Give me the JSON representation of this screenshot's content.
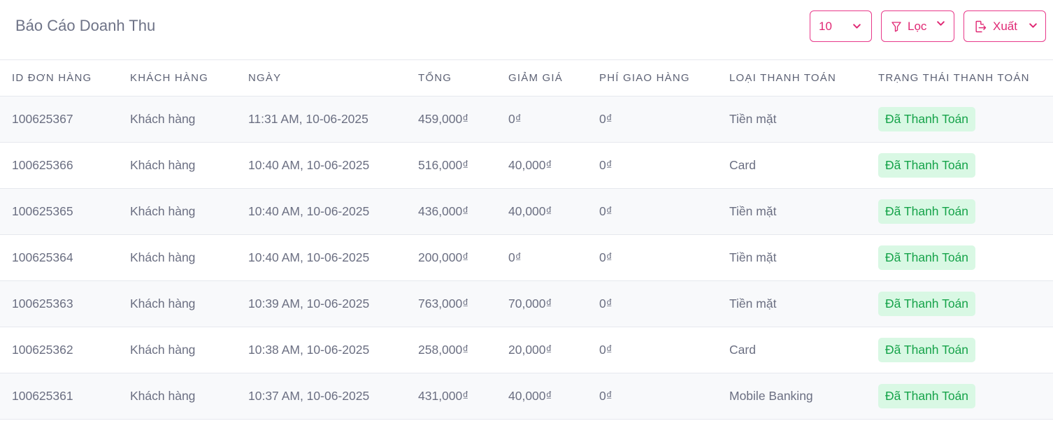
{
  "header": {
    "title": "Báo Cáo Doanh Thu",
    "page_size": "10",
    "filter_label": "Lọc",
    "export_label": "Xuất"
  },
  "colors": {
    "accent": "#e02874",
    "paid_badge_bg": "#d9f8e4",
    "paid_badge_text": "#16a34a"
  },
  "icons": {
    "page_size": "chevron-down-icon",
    "filter": "filter-icon",
    "export": "export-icon"
  },
  "table": {
    "columns": [
      "ID ĐƠN HÀNG",
      "KHÁCH HÀNG",
      "NGÀY",
      "TỔNG",
      "GIẢM GIÁ",
      "PHÍ GIAO HÀNG",
      "LOẠI THANH TOÁN",
      "TRẠNG THÁI THANH TOÁN"
    ],
    "rows": [
      {
        "id": "100625367",
        "customer": "Khách hàng",
        "date": "11:31 AM, 10-06-2025",
        "total": "459,000₫",
        "discount": "0₫",
        "shipping": "0₫",
        "payment_type": "Tiền mặt",
        "status": "Đã Thanh Toán"
      },
      {
        "id": "100625366",
        "customer": "Khách hàng",
        "date": "10:40 AM, 10-06-2025",
        "total": "516,000₫",
        "discount": "40,000₫",
        "shipping": "0₫",
        "payment_type": "Card",
        "status": "Đã Thanh Toán"
      },
      {
        "id": "100625365",
        "customer": "Khách hàng",
        "date": "10:40 AM, 10-06-2025",
        "total": "436,000₫",
        "discount": "40,000₫",
        "shipping": "0₫",
        "payment_type": "Tiền mặt",
        "status": "Đã Thanh Toán"
      },
      {
        "id": "100625364",
        "customer": "Khách hàng",
        "date": "10:40 AM, 10-06-2025",
        "total": "200,000₫",
        "discount": "0₫",
        "shipping": "0₫",
        "payment_type": "Tiền mặt",
        "status": "Đã Thanh Toán"
      },
      {
        "id": "100625363",
        "customer": "Khách hàng",
        "date": "10:39 AM, 10-06-2025",
        "total": "763,000₫",
        "discount": "70,000₫",
        "shipping": "0₫",
        "payment_type": "Tiền mặt",
        "status": "Đã Thanh Toán"
      },
      {
        "id": "100625362",
        "customer": "Khách hàng",
        "date": "10:38 AM, 10-06-2025",
        "total": "258,000₫",
        "discount": "20,000₫",
        "shipping": "0₫",
        "payment_type": "Card",
        "status": "Đã Thanh Toán"
      },
      {
        "id": "100625361",
        "customer": "Khách hàng",
        "date": "10:37 AM, 10-06-2025",
        "total": "431,000₫",
        "discount": "40,000₫",
        "shipping": "0₫",
        "payment_type": "Mobile Banking",
        "status": "Đã Thanh Toán"
      }
    ]
  }
}
